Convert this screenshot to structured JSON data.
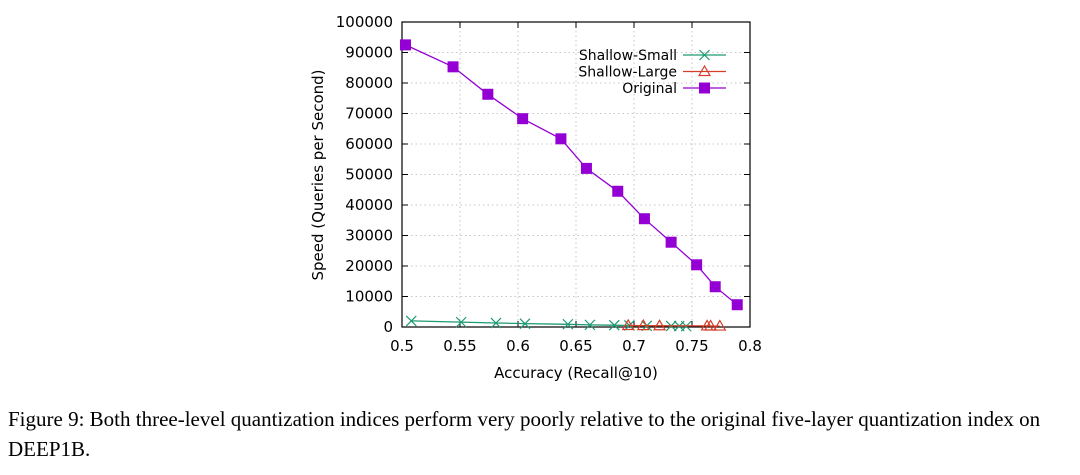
{
  "chart_data": {
    "type": "line",
    "xlabel": "Accuracy (Recall@10)",
    "ylabel": "Speed (Queries per Second)",
    "xlim": [
      0.5,
      0.8
    ],
    "ylim": [
      0,
      100000
    ],
    "x_ticks": [
      "0.5",
      "0.55",
      "0.6",
      "0.65",
      "0.7",
      "0.75",
      "0.8"
    ],
    "y_ticks": [
      "0",
      "10000",
      "20000",
      "30000",
      "40000",
      "50000",
      "60000",
      "70000",
      "80000",
      "90000",
      "100000"
    ],
    "grid": true,
    "legend_position": "top-right",
    "series": [
      {
        "name": "Shallow-Small",
        "color": "#1d9a73",
        "marker": "x",
        "x": [
          0.508,
          0.551,
          0.581,
          0.606,
          0.643,
          0.662,
          0.683,
          0.696,
          0.711,
          0.732,
          0.739,
          0.745
        ],
        "y": [
          2000,
          1600,
          1300,
          1100,
          900,
          700,
          600,
          500,
          400,
          350,
          300,
          250
        ]
      },
      {
        "name": "Shallow-Large",
        "color": "#d43f2a",
        "marker": "triangle",
        "x": [
          0.695,
          0.708,
          0.722,
          0.763,
          0.766,
          0.774
        ],
        "y": [
          500,
          450,
          400,
          350,
          330,
          300
        ]
      },
      {
        "name": "Original",
        "color": "#9400d3",
        "marker": "square",
        "x": [
          0.503,
          0.544,
          0.574,
          0.604,
          0.637,
          0.659,
          0.686,
          0.709,
          0.732,
          0.754,
          0.77,
          0.789
        ],
        "y": [
          92500,
          85300,
          76300,
          68300,
          61700,
          52000,
          44500,
          35500,
          27800,
          20400,
          13200,
          7300
        ]
      }
    ]
  },
  "caption": {
    "text": "Figure 9: Both three-level quantization indices perform very poorly relative to the original five-layer quantization index on DEEP1B."
  }
}
